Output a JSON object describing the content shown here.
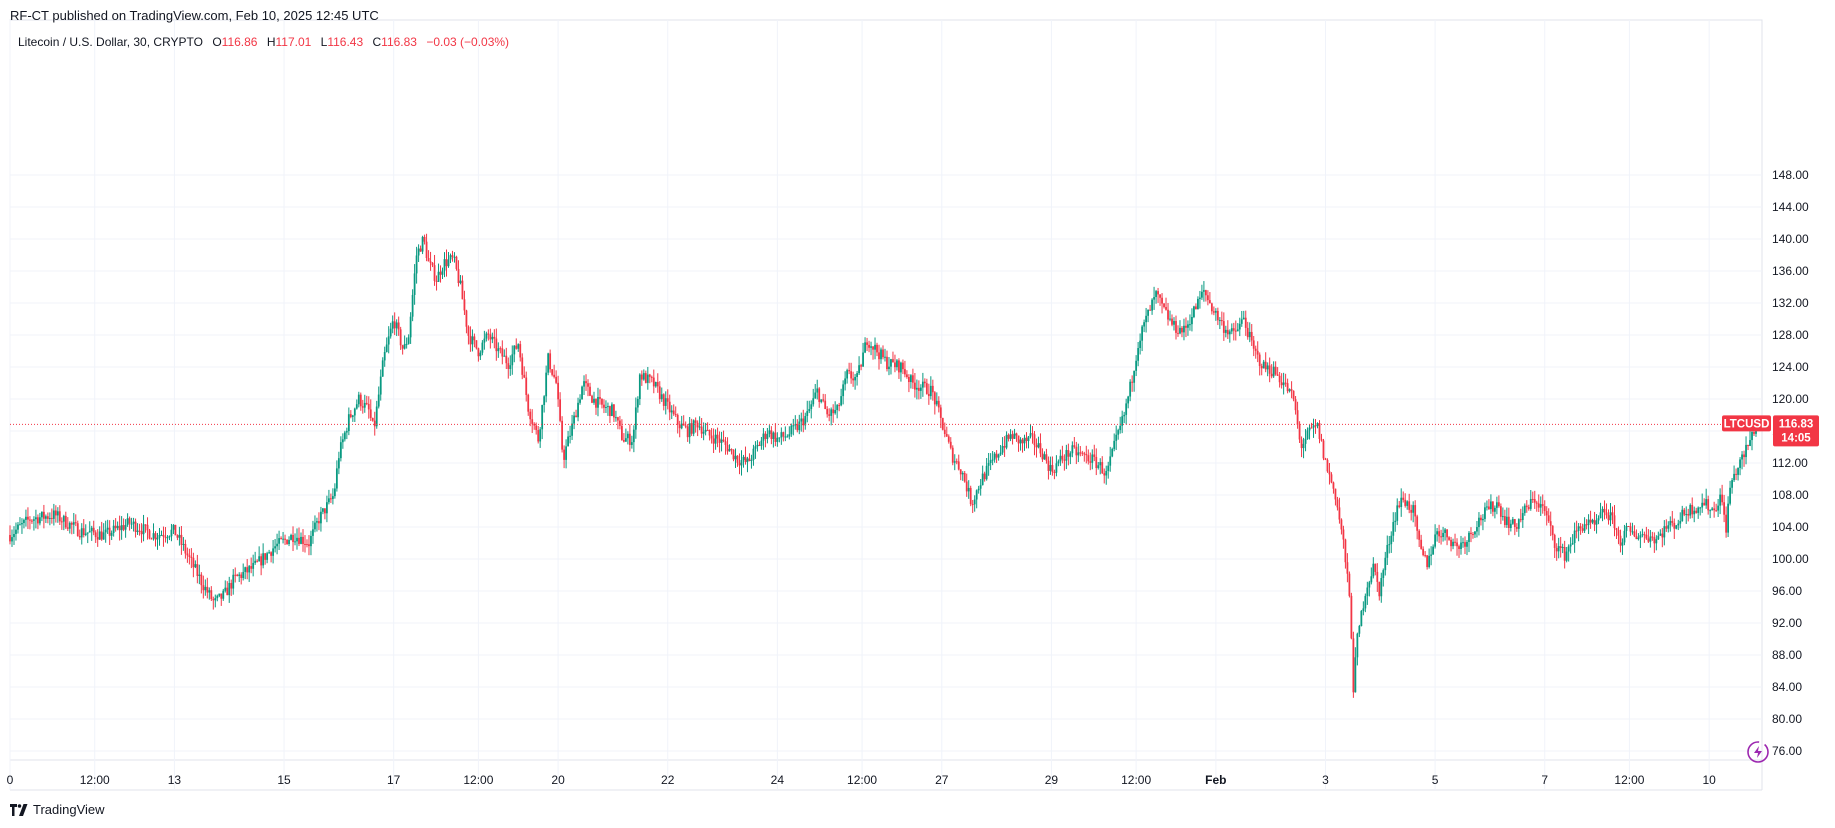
{
  "publisher_line": "RF-CT published on TradingView.com, Feb 10, 2025 12:45 UTC",
  "legend": {
    "symbol": "Litecoin / U.S. Dollar, 30, CRYPTO",
    "o_label": "O",
    "o_value": "116.86",
    "h_label": "H",
    "h_value": "117.01",
    "l_label": "L",
    "l_value": "116.43",
    "c_label": "C",
    "c_value": "116.83",
    "change": "−0.03 (−0.03%)"
  },
  "price_tag": {
    "ticker": "LTCUSD",
    "price": "116.83",
    "countdown": "14:05"
  },
  "brand": "TradingView",
  "icon": "lightning-icon",
  "colors": {
    "up": "#089981",
    "down": "#f23645",
    "grid": "#f0f3fa",
    "axis_text": "#131722",
    "price_line": "#f23645"
  },
  "chart_data": {
    "type": "candlestick",
    "title": "Litecoin / U.S. Dollar, 30, CRYPTO",
    "ylim": [
      74,
      149
    ],
    "y_ticks": [
      76,
      80,
      84,
      88,
      92,
      96,
      100,
      104,
      108,
      112,
      116,
      120,
      124,
      128,
      132,
      136,
      140,
      144,
      148
    ],
    "y_tick_labels": [
      "76.00",
      "80.00",
      "84.00",
      "88.00",
      "92.00",
      "96.00",
      "100.00",
      "104.00",
      "108.00",
      "112.00",
      "116.00",
      "120.00",
      "124.00",
      "128.00",
      "132.00",
      "136.00",
      "140.00",
      "144.00",
      "148.00"
    ],
    "x_range": [
      0,
      1752
    ],
    "x_ticks": [
      {
        "t": 0,
        "label": "0"
      },
      {
        "t": 85,
        "label": "12:00"
      },
      {
        "t": 165,
        "label": "13"
      },
      {
        "t": 275,
        "label": "15"
      },
      {
        "t": 385,
        "label": "17"
      },
      {
        "t": 470,
        "label": "12:00"
      },
      {
        "t": 550,
        "label": "20"
      },
      {
        "t": 660,
        "label": "22"
      },
      {
        "t": 770,
        "label": "24"
      },
      {
        "t": 855,
        "label": "12:00"
      },
      {
        "t": 935,
        "label": "27"
      },
      {
        "t": 1045,
        "label": "29"
      },
      {
        "t": 1130,
        "label": "12:00"
      },
      {
        "t": 1210,
        "label": "Feb"
      },
      {
        "t": 1320,
        "label": "3"
      },
      {
        "t": 1430,
        "label": "5"
      },
      {
        "t": 1540,
        "label": "7"
      },
      {
        "t": 1625,
        "label": "12:00"
      },
      {
        "t": 1705,
        "label": "10"
      }
    ],
    "last_price": 116.83,
    "grid": true,
    "path_points": [
      [
        0,
        103
      ],
      [
        20,
        105
      ],
      [
        45,
        105.5
      ],
      [
        70,
        103.5
      ],
      [
        95,
        103
      ],
      [
        120,
        104.5
      ],
      [
        145,
        103
      ],
      [
        165,
        103.5
      ],
      [
        180,
        100
      ],
      [
        195,
        96.5
      ],
      [
        205,
        94.5
      ],
      [
        215,
        95.5
      ],
      [
        225,
        97.5
      ],
      [
        245,
        99
      ],
      [
        265,
        101.5
      ],
      [
        285,
        103
      ],
      [
        300,
        102
      ],
      [
        310,
        105
      ],
      [
        325,
        108
      ],
      [
        330,
        113
      ],
      [
        340,
        117.5
      ],
      [
        350,
        120
      ],
      [
        360,
        118.5
      ],
      [
        365,
        116
      ],
      [
        375,
        125
      ],
      [
        385,
        130
      ],
      [
        395,
        126
      ],
      [
        400,
        128
      ],
      [
        408,
        138
      ],
      [
        415,
        140
      ],
      [
        420,
        137
      ],
      [
        428,
        135
      ],
      [
        435,
        137
      ],
      [
        445,
        137.5
      ],
      [
        452,
        134
      ],
      [
        460,
        128
      ],
      [
        470,
        126
      ],
      [
        480,
        128
      ],
      [
        490,
        126
      ],
      [
        500,
        124.5
      ],
      [
        510,
        127
      ],
      [
        520,
        119
      ],
      [
        530,
        115
      ],
      [
        540,
        125
      ],
      [
        548,
        122
      ],
      [
        555,
        112.5
      ],
      [
        565,
        117
      ],
      [
        575,
        122
      ],
      [
        585,
        120
      ],
      [
        595,
        119
      ],
      [
        605,
        118.5
      ],
      [
        615,
        115
      ],
      [
        625,
        115
      ],
      [
        632,
        123
      ],
      [
        645,
        122
      ],
      [
        660,
        119
      ],
      [
        670,
        117
      ],
      [
        680,
        116
      ],
      [
        690,
        117
      ],
      [
        700,
        115.5
      ],
      [
        710,
        115
      ],
      [
        720,
        114
      ],
      [
        730,
        112.5
      ],
      [
        740,
        112
      ],
      [
        750,
        114
      ],
      [
        760,
        116
      ],
      [
        770,
        115
      ],
      [
        780,
        115.5
      ],
      [
        790,
        116.5
      ],
      [
        800,
        118
      ],
      [
        810,
        121
      ],
      [
        820,
        118
      ],
      [
        830,
        118.5
      ],
      [
        840,
        123
      ],
      [
        850,
        122.5
      ],
      [
        860,
        127.5
      ],
      [
        870,
        126
      ],
      [
        880,
        124.5
      ],
      [
        895,
        124
      ],
      [
        905,
        122
      ],
      [
        915,
        121.5
      ],
      [
        925,
        121
      ],
      [
        935,
        117
      ],
      [
        945,
        113
      ],
      [
        955,
        111
      ],
      [
        965,
        107
      ],
      [
        975,
        110
      ],
      [
        985,
        112
      ],
      [
        995,
        114
      ],
      [
        1005,
        115.5
      ],
      [
        1015,
        114.5
      ],
      [
        1025,
        115
      ],
      [
        1035,
        113.5
      ],
      [
        1045,
        111
      ],
      [
        1055,
        112.5
      ],
      [
        1065,
        113.5
      ],
      [
        1075,
        113
      ],
      [
        1085,
        112.5
      ],
      [
        1095,
        111.5
      ],
      [
        1100,
        110.5
      ],
      [
        1108,
        114
      ],
      [
        1118,
        118
      ],
      [
        1125,
        122
      ],
      [
        1132,
        127
      ],
      [
        1140,
        130
      ],
      [
        1150,
        133
      ],
      [
        1158,
        131
      ],
      [
        1168,
        129
      ],
      [
        1178,
        128.5
      ],
      [
        1188,
        131
      ],
      [
        1198,
        133.5
      ],
      [
        1208,
        131
      ],
      [
        1218,
        129
      ],
      [
        1228,
        128
      ],
      [
        1238,
        130
      ],
      [
        1248,
        126
      ],
      [
        1258,
        124
      ],
      [
        1268,
        123.5
      ],
      [
        1278,
        122
      ],
      [
        1288,
        120
      ],
      [
        1295,
        114
      ],
      [
        1305,
        116
      ],
      [
        1312,
        116.5
      ],
      [
        1320,
        112
      ],
      [
        1330,
        108
      ],
      [
        1338,
        102
      ],
      [
        1345,
        94
      ],
      [
        1348,
        84
      ],
      [
        1352,
        90
      ],
      [
        1360,
        96
      ],
      [
        1368,
        99
      ],
      [
        1374,
        96
      ],
      [
        1380,
        100
      ],
      [
        1386,
        103.5
      ],
      [
        1392,
        106.5
      ],
      [
        1398,
        107.5
      ],
      [
        1408,
        106
      ],
      [
        1415,
        101
      ],
      [
        1422,
        99.5
      ],
      [
        1432,
        103.5
      ],
      [
        1442,
        103
      ],
      [
        1452,
        101.5
      ],
      [
        1462,
        102.5
      ],
      [
        1472,
        104.5
      ],
      [
        1482,
        106
      ],
      [
        1492,
        107
      ],
      [
        1500,
        105
      ],
      [
        1510,
        104
      ],
      [
        1520,
        106
      ],
      [
        1530,
        107.5
      ],
      [
        1540,
        106
      ],
      [
        1550,
        102
      ],
      [
        1560,
        100.5
      ],
      [
        1570,
        103
      ],
      [
        1580,
        104.5
      ],
      [
        1590,
        104
      ],
      [
        1600,
        106
      ],
      [
        1610,
        104.5
      ],
      [
        1615,
        102
      ],
      [
        1622,
        103.5
      ],
      [
        1632,
        103
      ],
      [
        1642,
        103
      ],
      [
        1652,
        102.5
      ],
      [
        1662,
        104
      ],
      [
        1672,
        104.5
      ],
      [
        1682,
        106
      ],
      [
        1692,
        106.5
      ],
      [
        1700,
        107
      ],
      [
        1710,
        106
      ],
      [
        1716,
        108
      ],
      [
        1722,
        104
      ],
      [
        1726,
        109
      ],
      [
        1732,
        111
      ],
      [
        1740,
        113
      ],
      [
        1748,
        115.5
      ],
      [
        1752,
        116.83
      ]
    ]
  }
}
